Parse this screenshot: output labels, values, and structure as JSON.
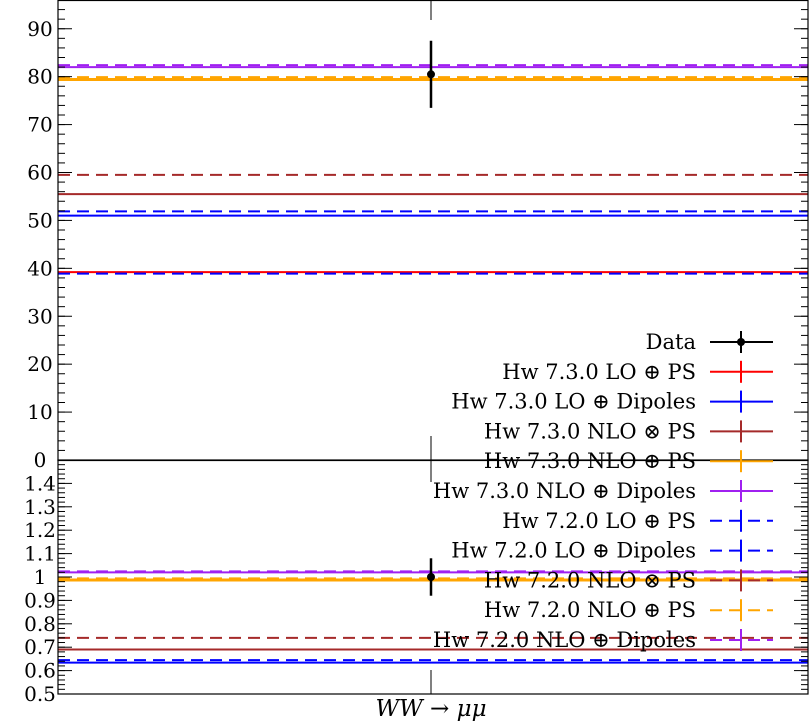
{
  "chart_data": {
    "type": "line",
    "xlabel": "WW → μμ",
    "main_panel": {
      "ylim": [
        0,
        96
      ],
      "yticks": [
        "0",
        "10",
        "20",
        "30",
        "40",
        "50",
        "60",
        "70",
        "80",
        "90"
      ],
      "data": {
        "value": 80.5,
        "err_low": 7.0,
        "err_high": 7.0
      }
    },
    "ratio_panel": {
      "ylim": [
        0.5,
        1.5
      ],
      "yticks": [
        "0.5",
        "0.6",
        "0.7",
        "0.8",
        "0.9",
        "1",
        "1.1",
        "1.2",
        "1.3",
        "1.4"
      ],
      "data": {
        "value": 1.0,
        "err_low": 0.08,
        "err_high": 0.08
      }
    },
    "legend": {
      "placement": "bottom-right",
      "data_label": "Data"
    },
    "series": [
      {
        "name": "Hw 7.3.0 LO ⊕ PS",
        "color": "#ff0000",
        "dash": false,
        "value": 39.2,
        "ratio": 0.487
      },
      {
        "name": "Hw 7.3.0 LO ⊕ Dipoles",
        "color": "#0000ff",
        "dash": false,
        "value": 51.0,
        "ratio": 0.634
      },
      {
        "name": "Hw 7.3.0 NLO ⊗ PS",
        "color": "#a52a2a",
        "dash": false,
        "value": 55.5,
        "ratio": 0.69
      },
      {
        "name": "Hw 7.3.0 NLO ⊕ PS",
        "color": "#ffa500",
        "dash": false,
        "value": 79.4,
        "ratio": 0.987
      },
      {
        "name": "Hw 7.3.0 NLO ⊕ Dipoles",
        "color": "#a020f0",
        "dash": false,
        "value": 82.0,
        "ratio": 1.02
      },
      {
        "name": "Hw 7.2.0 LO ⊕ PS",
        "color": "#0000ff",
        "dash": true,
        "value": 38.9,
        "ratio": 0.484
      },
      {
        "name": "Hw 7.2.0 LO ⊕ Dipoles",
        "color": "#0000ff",
        "dash": true,
        "value": 51.9,
        "ratio": 0.645
      },
      {
        "name": "Hw 7.2.0 NLO ⊗ PS",
        "color": "#a52a2a",
        "dash": true,
        "value": 59.5,
        "ratio": 0.74
      },
      {
        "name": "Hw 7.2.0 NLO ⊕ PS",
        "color": "#ffa500",
        "dash": true,
        "value": 79.8,
        "ratio": 0.992
      },
      {
        "name": "Hw 7.2.0 NLO ⊕ Dipoles",
        "color": "#a020f0",
        "dash": true,
        "value": 82.4,
        "ratio": 1.024
      }
    ]
  }
}
